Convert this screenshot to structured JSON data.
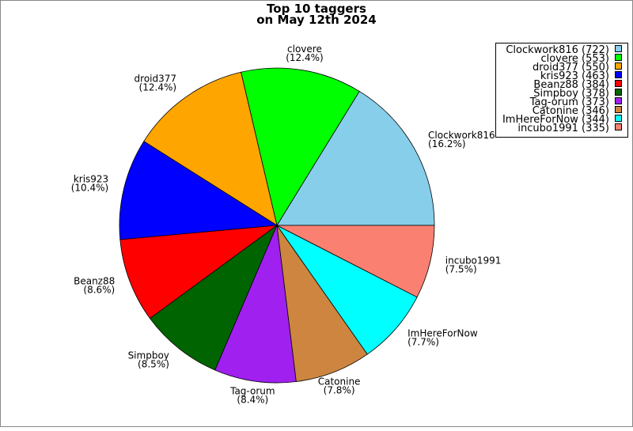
{
  "chart_data": {
    "type": "pie",
    "title": [
      "Top 10 taggers",
      "on May 12th 2024"
    ],
    "start_angle_deg": 0,
    "direction": "counterclockwise",
    "legend_position": "top-right",
    "slices": [
      {
        "name": "Clockwork816",
        "value": 722,
        "percent": "16.2%",
        "color": "#87CEEB"
      },
      {
        "name": "clovere",
        "value": 553,
        "percent": "12.4%",
        "color": "#00FF00"
      },
      {
        "name": "droid377",
        "value": 550,
        "percent": "12.4%",
        "color": "#FFA500"
      },
      {
        "name": "kris923",
        "value": 463,
        "percent": "10.4%",
        "color": "#0000FF"
      },
      {
        "name": "Beanz88",
        "value": 384,
        "percent": "8.6%",
        "color": "#FF0000"
      },
      {
        "name": "Simpboy",
        "value": 378,
        "percent": "8.5%",
        "color": "#006400"
      },
      {
        "name": "Tag-orum",
        "value": 373,
        "percent": "8.4%",
        "color": "#A020F0"
      },
      {
        "name": "Catonine",
        "value": 346,
        "percent": "7.8%",
        "color": "#CD853F"
      },
      {
        "name": "ImHereForNow",
        "value": 344,
        "percent": "7.7%",
        "color": "#00FFFF"
      },
      {
        "name": "incubo1991",
        "value": 335,
        "percent": "7.5%",
        "color": "#FA8072"
      }
    ]
  }
}
